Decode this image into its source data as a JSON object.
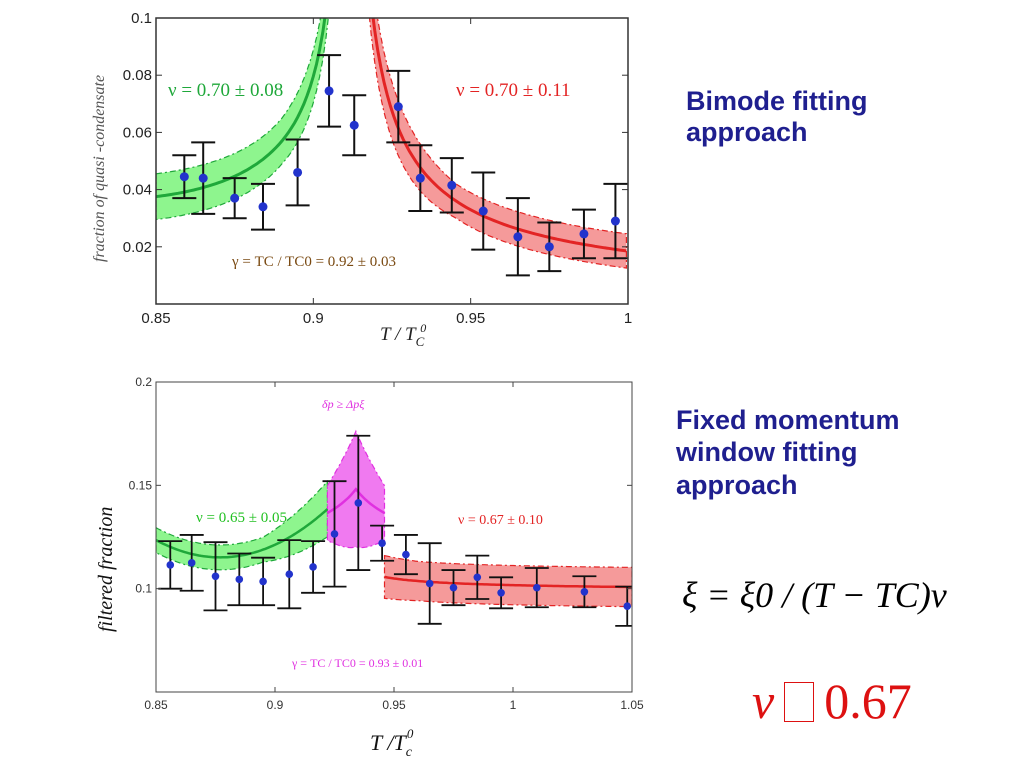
{
  "right_text": {
    "panel1_label": [
      "Bimode fitting",
      "approach"
    ],
    "panel2_label": [
      "Fixed momentum",
      "window  fitting",
      "approach"
    ],
    "formula": "ξ = ξ0 / (T − TC)ν",
    "nu_symbol": "ν",
    "nu_value": "0.67"
  },
  "colors": {
    "green_line": "#1fa83a",
    "green_band": "#8ef58e",
    "red_line": "#e32424",
    "red_band": "#f59a9a",
    "magenta_line": "#e030e0",
    "magenta_band": "#f07af0",
    "points_blue": "#2233cc",
    "side_text": "#1f1f8f",
    "nu_text": "#dd1111"
  },
  "chart_data": [
    {
      "type": "scatter",
      "xlabel": "T / TC0",
      "ylabel": "fraction of quasi -condensate",
      "xlim": [
        0.85,
        1.0
      ],
      "ylim": [
        0.0,
        0.1
      ],
      "xticks": [
        "0.85",
        "0.9",
        "0.95",
        "1"
      ],
      "yticks": [
        "0.02",
        "0.04",
        "0.06",
        "0.08",
        "0.1"
      ],
      "grid": false,
      "annotations": [
        "ν = 0.70 ± 0.08",
        "ν = 0.70 ± 0.11",
        "γ = TC / TC0 = 0.92 ± 0.03"
      ],
      "series": [
        {
          "name": "ν = 0.70 ± 0.08",
          "x": [
            0.859,
            0.865,
            0.875,
            0.884,
            0.895,
            0.905
          ],
          "y": [
            0.0445,
            0.044,
            0.037,
            0.034,
            0.046,
            0.0745
          ],
          "err": [
            0.0075,
            0.0125,
            0.007,
            0.008,
            0.0115,
            0.0125
          ]
        },
        {
          "name": "",
          "x": [
            0.913
          ],
          "y": [
            0.0625
          ],
          "err": [
            0.0105
          ]
        },
        {
          "name": "ν = 0.70 ± 0.11",
          "x": [
            0.927,
            0.934,
            0.944,
            0.954,
            0.965,
            0.975,
            0.986,
            0.996
          ],
          "y": [
            0.069,
            0.044,
            0.0415,
            0.0325,
            0.0235,
            0.02,
            0.0245,
            0.029
          ],
          "err": [
            0.0125,
            0.0115,
            0.0095,
            0.0135,
            0.0135,
            0.0085,
            0.0085,
            0.013
          ]
        }
      ]
    },
    {
      "type": "scatter",
      "xlabel": "T / Tc0",
      "ylabel": "filtered fraction",
      "xlim": [
        0.85,
        1.05
      ],
      "ylim": [
        0.05,
        0.2
      ],
      "xticks": [
        "0.85",
        "0.9",
        "0.95",
        "1",
        "1.05"
      ],
      "yticks": [
        "0.1",
        "0.15",
        "0.2"
      ],
      "grid": false,
      "annotations": [
        "δp ≥ Δpξ",
        "ν = 0.65 ± 0.05",
        "ν = 0.67 ± 0.10",
        "γ = TC / TC0 = 0.93 ± 0.01"
      ],
      "series": [
        {
          "name": "ν = 0.65 ± 0.05",
          "x": [
            0.856,
            0.865,
            0.875,
            0.885,
            0.895,
            0.906,
            0.916
          ],
          "y": [
            0.1115,
            0.1125,
            0.106,
            0.1045,
            0.1035,
            0.107,
            0.1105
          ],
          "err": [
            0.0115,
            0.0135,
            0.0165,
            0.0125,
            0.0115,
            0.0165,
            0.0125
          ]
        },
        {
          "name": "",
          "x": [
            0.925,
            0.935
          ],
          "y": [
            0.1265,
            0.1415
          ],
          "err": [
            0.0255,
            0.0325
          ]
        },
        {
          "name": "ν = 0.67 ± 0.10",
          "x": [
            0.945,
            0.955,
            0.965,
            0.975,
            0.985,
            0.995,
            1.01,
            1.03,
            1.048
          ],
          "y": [
            0.122,
            0.1165,
            0.1025,
            0.1005,
            0.1055,
            0.098,
            0.1005,
            0.0985,
            0.0915
          ],
          "err": [
            0.0085,
            0.0095,
            0.0195,
            0.0085,
            0.0105,
            0.0075,
            0.0095,
            0.0075,
            0.0095
          ]
        }
      ]
    }
  ]
}
